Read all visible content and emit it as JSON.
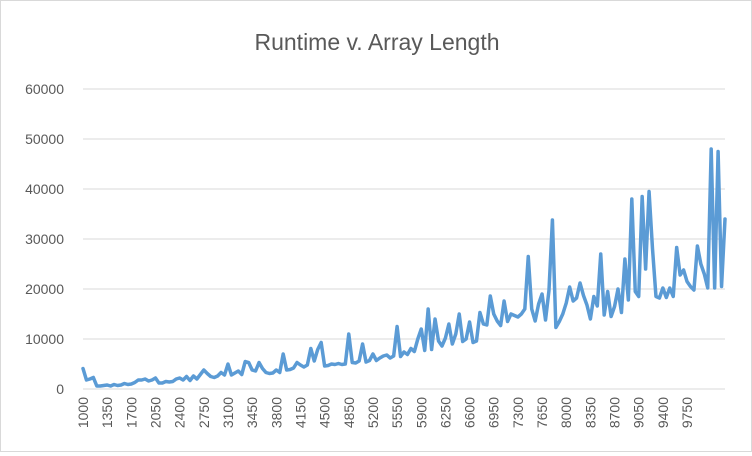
{
  "chart_data": {
    "type": "line",
    "title": "Runtime v. Array Length",
    "xlabel": "",
    "ylabel": "",
    "ylim": [
      0,
      60000
    ],
    "yticks": [
      0,
      10000,
      20000,
      30000,
      40000,
      50000,
      60000
    ],
    "xtick_labels": [
      "1000",
      "1350",
      "1700",
      "2050",
      "2400",
      "2750",
      "3100",
      "3450",
      "3800",
      "4150",
      "4500",
      "4850",
      "5200",
      "5550",
      "5900",
      "6250",
      "6600",
      "6950",
      "7300",
      "7650",
      "8000",
      "8350",
      "8700",
      "9050",
      "9400",
      "9750"
    ],
    "x_start": 1000,
    "x_step": 50,
    "grid": "horizontal",
    "legend": "none",
    "series": [
      {
        "color": "#5b9bd5",
        "values": [
          4100,
          1800,
          2000,
          2300,
          600,
          600,
          700,
          800,
          600,
          900,
          700,
          800,
          1100,
          900,
          1000,
          1300,
          1800,
          1800,
          2000,
          1600,
          1800,
          2200,
          1200,
          1200,
          1500,
          1400,
          1500,
          2000,
          2200,
          1800,
          2500,
          1700,
          2600,
          2000,
          2900,
          3800,
          3100,
          2500,
          2300,
          2600,
          3300,
          2800,
          5000,
          2800,
          3200,
          3600,
          2900,
          5500,
          5300,
          3800,
          3600,
          5300,
          4100,
          3300,
          3100,
          3200,
          3800,
          3300,
          7000,
          3800,
          3900,
          4200,
          5300,
          4800,
          4400,
          4800,
          8100,
          5600,
          7900,
          9300,
          4600,
          4700,
          5000,
          4900,
          5100,
          4900,
          5000,
          11000,
          5300,
          5200,
          5600,
          9000,
          5400,
          5700,
          7000,
          5700,
          6200,
          6600,
          6800,
          6200,
          6600,
          12500,
          6500,
          7400,
          6900,
          8100,
          7500,
          10000,
          12000,
          7700,
          16000,
          7900,
          14000,
          9600,
          8600,
          10200,
          13000,
          9000,
          11000,
          15000,
          9500,
          10000,
          13400,
          9300,
          9600,
          15300,
          13000,
          12800,
          18600,
          15000,
          13600,
          12700,
          17600,
          13500,
          15000,
          14700,
          14400,
          15000,
          16000,
          26500,
          16000,
          13600,
          17000,
          19000,
          13800,
          19700,
          33800,
          12300,
          13500,
          15000,
          17200,
          20400,
          17600,
          18200,
          21200,
          18700,
          16800,
          14000,
          18500,
          16600,
          27000,
          14800,
          19500,
          14500,
          16500,
          20000,
          15300,
          26000,
          17800,
          38000,
          19500,
          18500,
          38500,
          24000,
          39500,
          28000,
          18500,
          18200,
          20200,
          18300,
          20200,
          18500,
          28300,
          22800,
          23800,
          21500,
          20500,
          19800,
          28600,
          25000,
          23000,
          20200,
          48000,
          20200,
          47500,
          20500,
          34000
        ]
      }
    ]
  }
}
